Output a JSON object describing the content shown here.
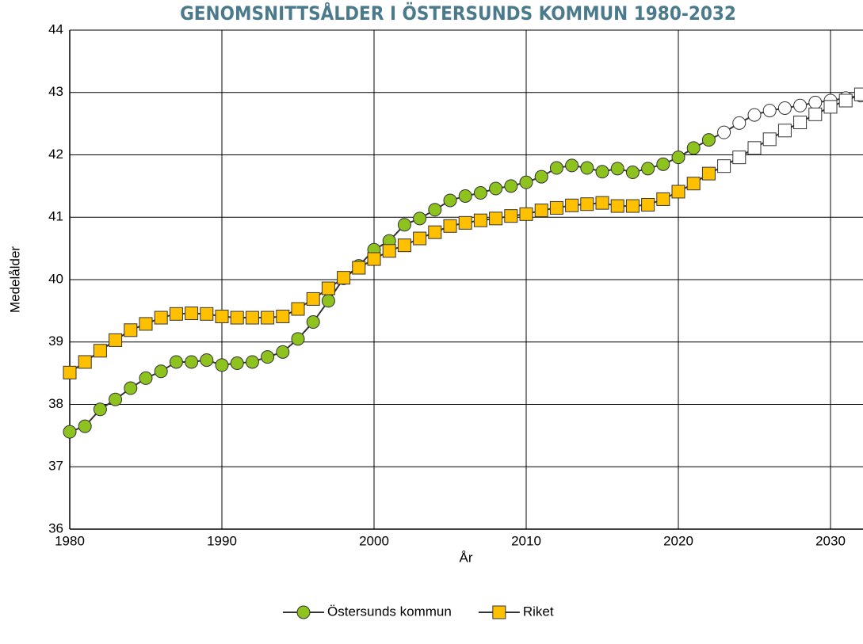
{
  "chart_data": {
    "type": "line",
    "title": "GENOMSNITTSÅLDER I ÖSTERSUNDS KOMMUN 1980-2032",
    "xlabel": "År",
    "ylabel": "Medelålder",
    "x": [
      1980,
      1981,
      1982,
      1983,
      1984,
      1985,
      1986,
      1987,
      1988,
      1989,
      1990,
      1991,
      1992,
      1993,
      1994,
      1995,
      1996,
      1997,
      1998,
      1999,
      2000,
      2001,
      2002,
      2003,
      2004,
      2005,
      2006,
      2007,
      2008,
      2009,
      2010,
      2011,
      2012,
      2013,
      2014,
      2015,
      2016,
      2017,
      2018,
      2019,
      2020,
      2021,
      2022,
      2023,
      2024,
      2025,
      2026,
      2027,
      2028,
      2029,
      2030,
      2031,
      2032
    ],
    "series": [
      {
        "name": "Östersunds kommun",
        "color": "#8dc21f",
        "marker": "circle",
        "values": [
          37.56,
          37.65,
          37.92,
          38.08,
          38.26,
          38.42,
          38.53,
          38.68,
          38.68,
          38.71,
          38.63,
          38.66,
          38.68,
          38.76,
          38.84,
          39.05,
          39.32,
          39.66,
          40.02,
          40.22,
          40.48,
          40.62,
          40.88,
          40.98,
          41.12,
          41.27,
          41.34,
          41.39,
          41.46,
          41.5,
          41.56,
          41.65,
          41.79,
          41.83,
          41.79,
          41.73,
          41.78,
          41.72,
          41.78,
          41.85,
          41.96,
          42.11,
          42.24,
          42.36,
          42.51,
          42.64,
          42.71,
          42.75,
          42.79,
          42.84,
          42.87,
          42.91,
          42.95
        ]
      },
      {
        "name": "Riket",
        "color": "#ffc000",
        "marker": "square",
        "values": [
          38.51,
          38.68,
          38.86,
          39.03,
          39.19,
          39.29,
          39.39,
          39.45,
          39.46,
          39.45,
          39.41,
          39.39,
          39.39,
          39.39,
          39.41,
          39.53,
          39.69,
          39.86,
          40.03,
          40.19,
          40.33,
          40.46,
          40.55,
          40.66,
          40.76,
          40.86,
          40.91,
          40.95,
          40.98,
          41.02,
          41.05,
          41.11,
          41.15,
          41.19,
          41.21,
          41.23,
          41.18,
          41.18,
          41.2,
          41.29,
          41.41,
          41.54,
          41.7,
          41.82,
          41.96,
          42.11,
          42.25,
          42.39,
          42.52,
          42.65,
          42.77,
          42.87,
          42.97
        ]
      }
    ],
    "hollow_from": 2023,
    "hollow_color": "#ffffff",
    "xlim": [
      1980,
      2032
    ],
    "xticks": [
      1980,
      1990,
      2000,
      2010,
      2020,
      2030
    ],
    "ylim": [
      36,
      44
    ],
    "yticks": [
      36,
      37,
      38,
      39,
      40,
      41,
      42,
      43,
      44
    ],
    "grid": true,
    "legend": "bottom"
  }
}
